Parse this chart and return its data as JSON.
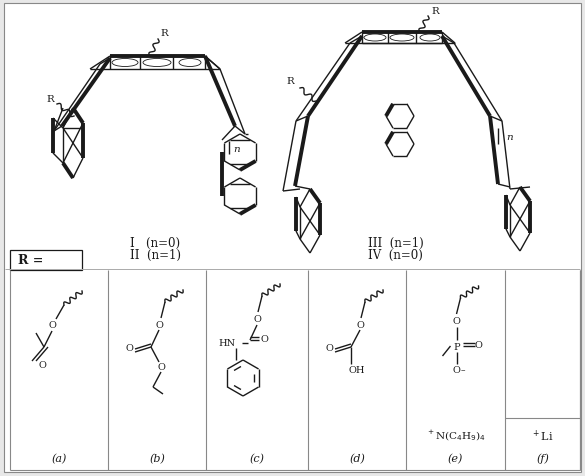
{
  "bg_color": "#e8e8e8",
  "panel_bg": "#ffffff",
  "lc": "#1a1a1a",
  "thick": 2.8,
  "thin": 1.0,
  "med": 1.6,
  "label_I_II": "I  (n=0)\nII  (n=1)",
  "label_III_IV": "III  (n=1)\nIV  (n=0)",
  "R_label": "R =",
  "sub_labels": [
    "(a)",
    "(b)",
    "(c)",
    "(d)",
    "(e)",
    "(f)"
  ]
}
